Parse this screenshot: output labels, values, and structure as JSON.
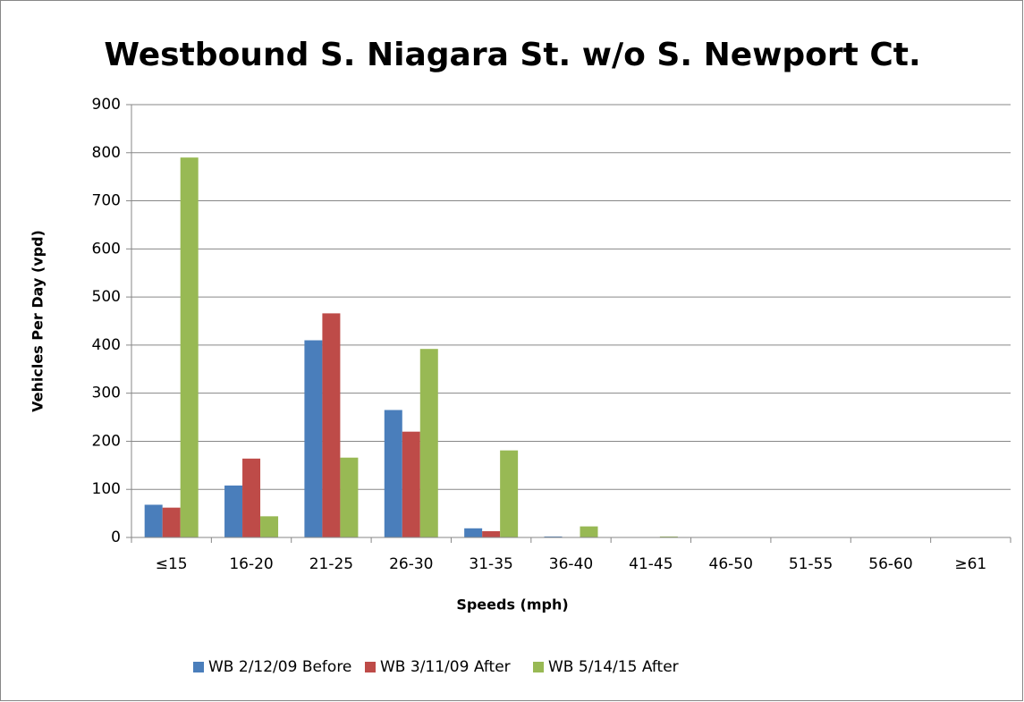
{
  "chart_data": {
    "type": "bar",
    "title": "Westbound S. Niagara St. w/o S. Newport Ct.",
    "x_label": "Speeds (mph)",
    "y_label": "Vehicles Per Day (vpd)",
    "categories": [
      "≤15",
      "16-20",
      "21-25",
      "26-30",
      "31-35",
      "36-40",
      "41-45",
      "46-50",
      "51-55",
      "56-60",
      "≥61"
    ],
    "series": [
      {
        "name": "WB 2/12/09 Before",
        "color": "#4a7ebb",
        "values": [
          68,
          108,
          410,
          265,
          19,
          2,
          0,
          0,
          0,
          0,
          0
        ]
      },
      {
        "name": "WB 3/11/09 After",
        "color": "#be4b48",
        "values": [
          62,
          164,
          466,
          220,
          13,
          0,
          0,
          0,
          0,
          0,
          0
        ]
      },
      {
        "name": "WB 5/14/15 After",
        "color": "#98b954",
        "values": [
          790,
          44,
          166,
          392,
          181,
          23,
          2,
          0,
          0,
          0,
          0
        ]
      }
    ],
    "ylim": [
      0,
      900
    ],
    "yticks": [
      0,
      100,
      200,
      300,
      400,
      500,
      600,
      700,
      800,
      900
    ],
    "grid": true,
    "legend": "bottom"
  }
}
